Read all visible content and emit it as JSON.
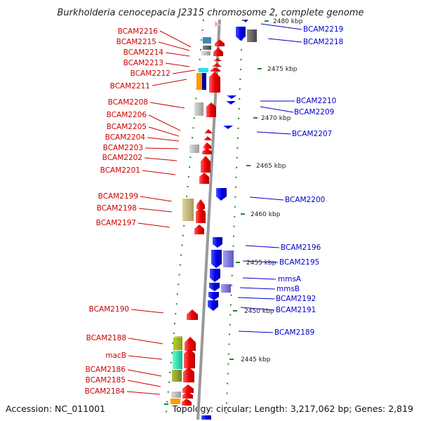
{
  "title": "Burkholderia cenocepacia J2315 chromosome 2, complete genome",
  "accession": "Accession: NC_011001",
  "topology": "Topology: circular; Length: 3,217,062 bp; Genes: 2,819",
  "scale_labels": [
    "2480 kbp",
    "2475 kbp",
    "2470 kbp",
    "2465 kbp",
    "2460 kbp",
    "2455 kbp",
    "2450 kbp",
    "2445 kbp"
  ],
  "left_genes": [
    "BCAM2216",
    "BCAM2215",
    "BCAM2214",
    "BCAM2213",
    "BCAM2212",
    "BCAM2211",
    "BCAM2208",
    "BCAM2206",
    "BCAM2205",
    "BCAM2204",
    "BCAM2203",
    "BCAM2202",
    "BCAM2201",
    "BCAM2199",
    "BCAM2198",
    "BCAM2197",
    "BCAM2190",
    "BCAM2188",
    "macB",
    "BCAM2186",
    "BCAM2185",
    "BCAM2184"
  ],
  "right_genes": [
    "BCAM2219",
    "BCAM2218",
    "BCAM2210",
    "BCAM2209",
    "BCAM2207",
    "BCAM2200",
    "BCAM2196",
    "BCAM2195",
    "mmsA",
    "mmsB",
    "BCAM2192",
    "BCAM2191",
    "BCAM2189"
  ],
  "colors": {
    "forward": "#ee0000",
    "reverse": "#0000ee",
    "backbone": "#999999",
    "tick": "#228822",
    "label_red": "#cc0000",
    "label_blue": "#0000cc"
  }
}
